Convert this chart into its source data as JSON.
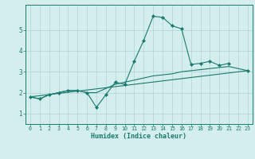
{
  "xlabel": "Humidex (Indice chaleur)",
  "x_values": [
    0,
    1,
    2,
    3,
    4,
    5,
    6,
    7,
    8,
    9,
    10,
    11,
    12,
    13,
    14,
    15,
    16,
    17,
    18,
    19,
    20,
    21,
    22,
    23
  ],
  "line1": [
    1.8,
    1.7,
    1.9,
    2.0,
    2.1,
    2.1,
    2.0,
    1.3,
    1.9,
    2.5,
    2.4,
    3.5,
    4.5,
    5.65,
    5.6,
    5.2,
    5.05,
    3.35,
    3.4,
    3.5,
    3.3,
    3.4,
    null,
    3.05
  ],
  "line2": [
    1.8,
    1.7,
    1.9,
    2.0,
    2.1,
    2.1,
    2.0,
    2.0,
    2.2,
    2.4,
    2.5,
    2.6,
    2.7,
    2.8,
    2.85,
    2.9,
    3.0,
    3.05,
    3.1,
    3.15,
    3.2,
    3.25,
    null,
    3.05
  ],
  "line3_x": [
    0,
    23
  ],
  "line3_y": [
    1.8,
    3.05
  ],
  "line_color": "#1a7a6e",
  "bg_color": "#d4eeee",
  "grid_color": "#aed4d4",
  "ylim": [
    0.5,
    6.2
  ],
  "yticks": [
    1,
    2,
    3,
    4,
    5
  ],
  "xlim": [
    -0.5,
    23.5
  ]
}
